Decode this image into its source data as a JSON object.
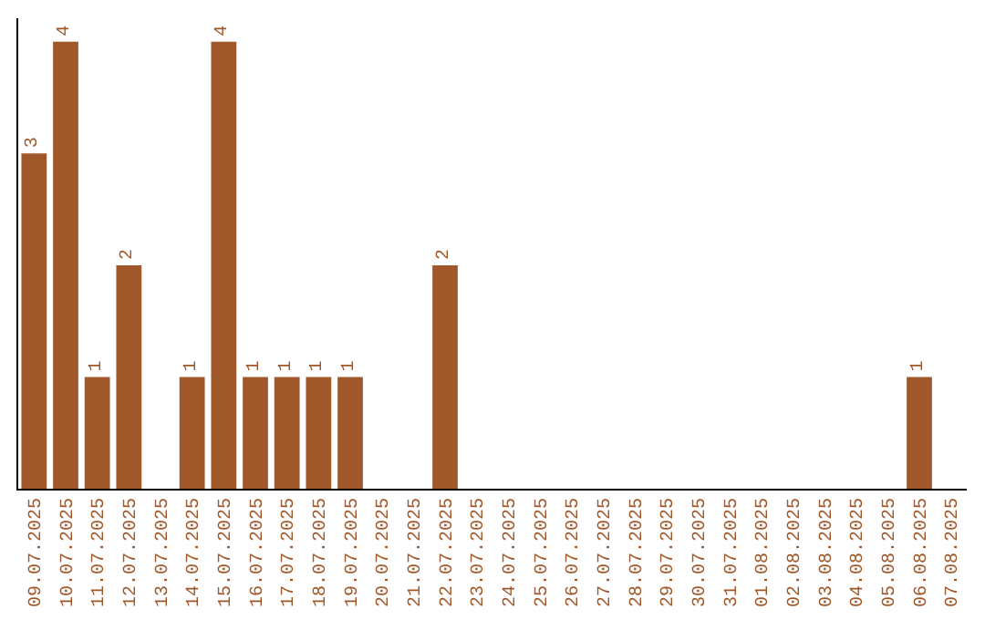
{
  "chart_data": {
    "type": "bar",
    "color": "#a0582a",
    "categories": [
      "09.07.2025",
      "10.07.2025",
      "11.07.2025",
      "12.07.2025",
      "13.07.2025",
      "14.07.2025",
      "15.07.2025",
      "16.07.2025",
      "17.07.2025",
      "18.07.2025",
      "19.07.2025",
      "20.07.2025",
      "21.07.2025",
      "22.07.2025",
      "23.07.2025",
      "24.07.2025",
      "25.07.2025",
      "26.07.2025",
      "27.07.2025",
      "28.07.2025",
      "29.07.2025",
      "30.07.2025",
      "31.07.2025",
      "01.08.2025",
      "02.08.2025",
      "03.08.2025",
      "04.08.2025",
      "05.08.2025",
      "06.08.2025",
      "07.08.2025"
    ],
    "values": [
      3,
      4,
      1,
      2,
      0,
      1,
      4,
      1,
      1,
      1,
      1,
      0,
      0,
      2,
      0,
      0,
      0,
      0,
      0,
      0,
      0,
      0,
      0,
      0,
      0,
      0,
      0,
      0,
      1,
      0
    ],
    "value_labels": [
      "3",
      "4",
      "1",
      "2",
      null,
      "1",
      "4",
      "1",
      "1",
      "1",
      "1",
      null,
      null,
      "2",
      null,
      null,
      null,
      null,
      null,
      null,
      null,
      null,
      null,
      null,
      null,
      null,
      null,
      null,
      "1",
      null
    ],
    "tick_labels": "x",
    "grid": false
  }
}
